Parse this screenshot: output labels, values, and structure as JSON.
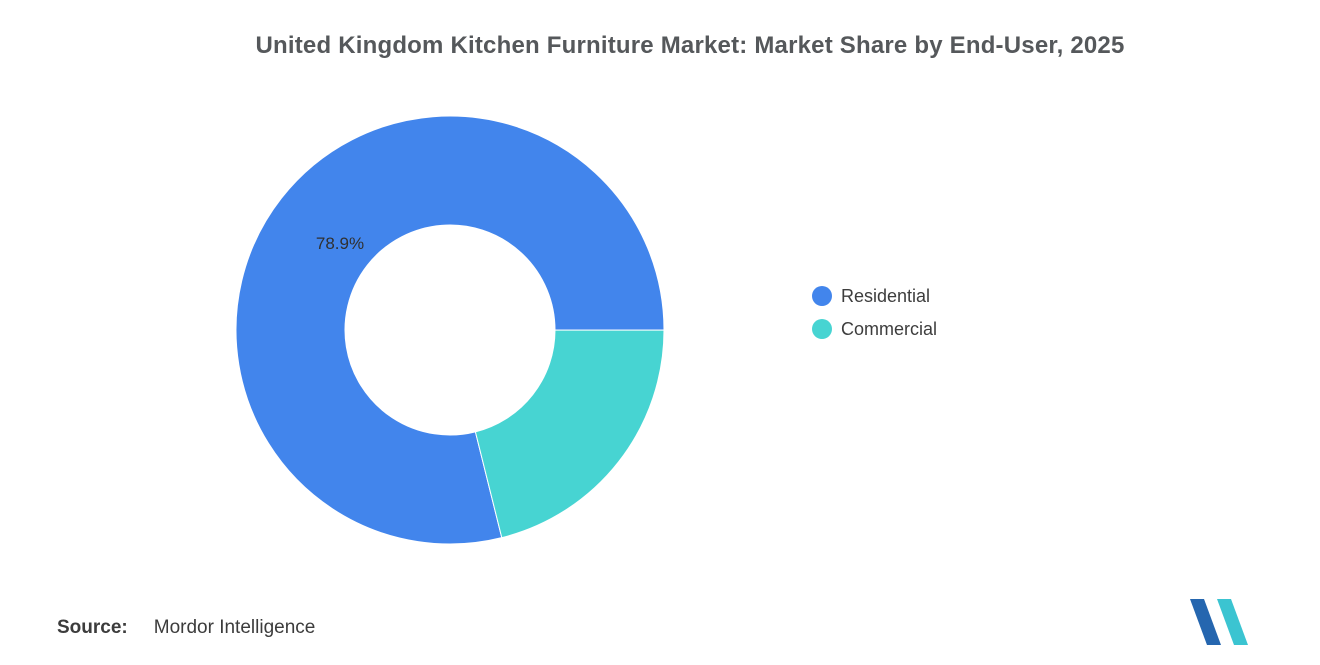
{
  "title": "United Kingdom Kitchen Furniture Market: Market Share by End-User, 2025",
  "source": {
    "label": "Source:",
    "value": "Mordor Intelligence"
  },
  "colors": {
    "residential": "#4285EC",
    "commercial": "#47D4D2",
    "title_text": "#55585B",
    "body_text": "#3D3D3D",
    "logo_blue": "#2566AF",
    "logo_teal": "#3BC4D1"
  },
  "chart_data": {
    "type": "pie",
    "subtype": "donut",
    "title": "United Kingdom Kitchen Furniture Market: Market Share by End-User, 2025",
    "categories": [
      "Residential",
      "Commercial"
    ],
    "values": [
      78.9,
      21.1
    ],
    "unit": "%",
    "colors": [
      "#4285EC",
      "#47D4D2"
    ],
    "start_angle_deg": 166,
    "inner_radius_ratio": 0.49,
    "data_labels": [
      "78.9%"
    ],
    "legend_position": "right",
    "legend_entries": [
      "Residential",
      "Commercial"
    ]
  }
}
